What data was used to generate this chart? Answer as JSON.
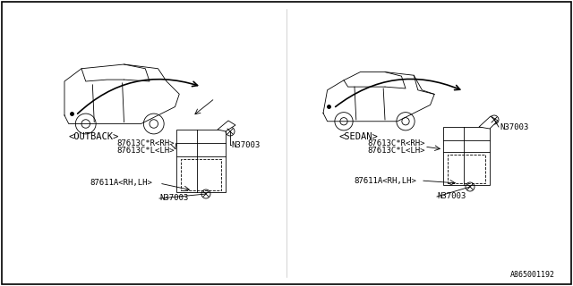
{
  "bg_color": "#ffffff",
  "border_color": "#000000",
  "title_ref": "A865001192",
  "outback_label": "<OUTBACK>",
  "sedan_label": "<SEDAN>",
  "outback_parts": [
    "87613C*R<RH>",
    "87613C*L<LH>"
  ],
  "outback_bottom_part": "87611A<RH,LH>",
  "outback_bolt_right": "N37003",
  "outback_bolt_bottom": "N37003",
  "sedan_parts": [
    "87613C*R<RH>",
    "87613C*L<LH>"
  ],
  "sedan_bottom_part": "87611A<RH,LH>",
  "sedan_bolt_top_right": "N37003",
  "sedan_bolt_bottom": "N37003",
  "font_size_label": 7,
  "font_size_ref": 6
}
